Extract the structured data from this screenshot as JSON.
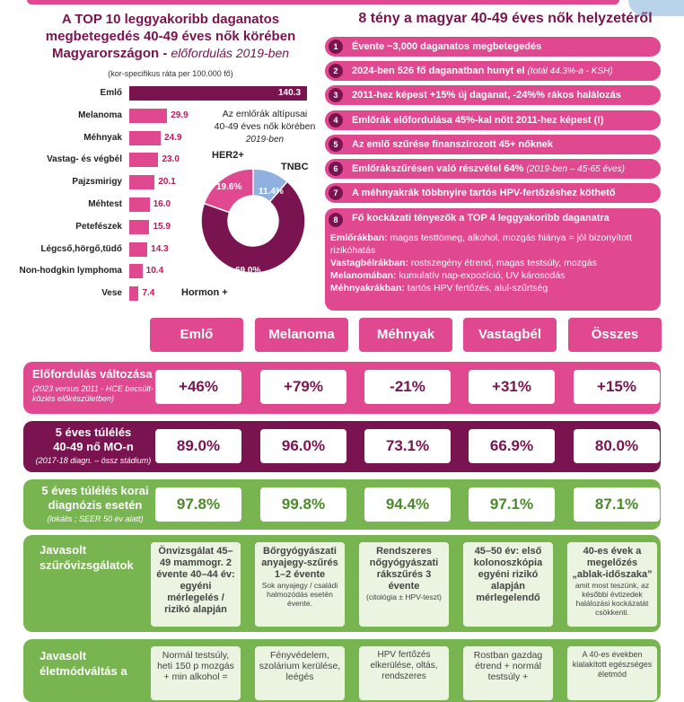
{
  "chart_data": {
    "type": "bar",
    "title": "A TOP 10 leggyakoribb daganatos megbetegedés 40-49 éves nők körében Magyarországon -",
    "title_italic": "előfordulás 2019-ben",
    "note": "(kor-specifikus ráta per 100.000 fő)",
    "categories": [
      "Emlő",
      "Melanoma",
      "Méhnyak",
      "Vastag- és végbél",
      "Pajzsmirigy",
      "Méhtest",
      "Petefészek",
      "Légcső,hörgő,tüdő",
      "Non-hodgkin lymphoma",
      "Vese"
    ],
    "values": [
      140.3,
      29.9,
      24.9,
      23.0,
      20.1,
      16.0,
      15.9,
      14.3,
      10.4,
      7.4
    ],
    "value_labels": [
      "140.3",
      "29.9",
      "24.9",
      "23.0",
      "20.1",
      "16.0",
      "15.9",
      "14.3",
      "10.4",
      "7.4"
    ],
    "colors": {
      "first": "#7a1450",
      "rest": "#e0488f"
    }
  },
  "donut": {
    "title_line1": "Az emlőrák altípusai",
    "title_line2": "40-49 éves nők körében",
    "title_line3": "2019-ben",
    "segments": [
      {
        "name": "HER2+",
        "value": 19.6,
        "label": "19.6%",
        "color": "#e0488f"
      },
      {
        "name": "TNBC",
        "value": 11.4,
        "label": "11.4%",
        "color": "#8fb0e0"
      },
      {
        "name": "Hormon +",
        "value": 69.0,
        "label": "69.0%",
        "color": "#7a1450"
      }
    ]
  },
  "facts": {
    "title": "8 tény a magyar 40-49 éves nők helyzetéről",
    "items": [
      {
        "num": "1",
        "text": "Évente ~3,000 daganatos megbetegedés",
        "small": ""
      },
      {
        "num": "2",
        "text": "2024-ben 526 fő daganatban hunyt el",
        "small": "(totál 44.3%-a - KSH)"
      },
      {
        "num": "3",
        "text": "2011-hez képest +15% új daganat, -24%% rákos halálozás",
        "small": ""
      },
      {
        "num": "4",
        "text": "Emlőrák előfordulása 45%-kal nőtt 2011-hez képest (!)",
        "small": ""
      },
      {
        "num": "5",
        "text": "Az emlő szűrése finanszírozott 45+ nőknek",
        "small": ""
      },
      {
        "num": "6",
        "text": "Emlőrákszűrésen való részvétel 64%",
        "small": "(2019-ben – 45-65 éves)"
      },
      {
        "num": "7",
        "text": "A méhnyakrák többnyire tartós HPV-fertőzéshez köthető",
        "small": ""
      }
    ],
    "item8": {
      "num": "8",
      "head": "Fő kockázati tényezők a TOP 4 leggyakoribb daganatra",
      "l1b": "Emlőrákban:",
      "l1": " magas testtömeg, alkohol, mozgás hiánya = jól bizonyított rizikóhatás",
      "l2b": "Vastagbélrákban:",
      "l2": " rostszegény étrend, magas testsúly, mozgás",
      "l3b": "Melanomában:",
      "l3": " kumulatív nap-expozíció, UV károsodás",
      "l4b": "Méhnyakrákban:",
      "l4": " tartós HPV fertőzés, alul-szűrtség"
    }
  },
  "table": {
    "columns": [
      "Emlő",
      "Melanoma",
      "Méhnyak",
      "Vastagbél",
      "Összes"
    ],
    "row1": {
      "label": "Előfordulás változása",
      "sub": "(2023 versus 2011 - HCE becsült-közlés előkészületben)",
      "values": [
        "+46%",
        "+79%",
        "-21%",
        "+31%",
        "+15%"
      ]
    },
    "row2": {
      "label1": "5 éves túlélés",
      "label2": "40-49 nő MO-n",
      "sub": "(2017-18 diagn. – össz stádium)",
      "values": [
        "89.0%",
        "96.0%",
        "73.1%",
        "66.9%",
        "80.0%"
      ]
    },
    "row3": {
      "label1": "5 éves túlélés korai",
      "label2": "diagnózis esetén",
      "sub": "(lokális ; SEER 50 év alatt)",
      "values": [
        "97.8%",
        "99.8%",
        "94.4%",
        "97.1%",
        "87.1%"
      ]
    },
    "row4": {
      "label1": "Javasolt",
      "label2": "szűrővizsgálatok",
      "cells": [
        {
          "main": "Önvizsgálat 45–49 mammogr. 2 évente 40–44 év: egyéni mérlegelés / rizikó alapján",
          "small": ""
        },
        {
          "main": "Bőrgyógyászati anyajegy-szűrés 1–2 évente",
          "small": "Sok anyajegy / családi halmozódás esetén évente."
        },
        {
          "main": "Rendszeres nőgyógyászati rákszűrés 3 évente",
          "small": "(citológia ± HPV-teszt)"
        },
        {
          "main": "45–50 év: első kolonoszkópia egyéni rizikó alapján mérlegelendő",
          "small": ""
        },
        {
          "main": "40-es évek a megelőzés „ablak-időszaka”",
          "small": "amit most teszünk, az későbbi évtizedek halálozási kockázatát csökkenti."
        }
      ]
    },
    "row5": {
      "label1": "Javasolt",
      "label2": "életmódváltás a",
      "cells": [
        "Normál testsúly, heti 150 p mozgás + min alkohol =",
        "Fényvédelem, szolárium kerülése, leégés",
        "HPV fertőzés elkerülése, oltás, rendszeres",
        "Rostban gazdag étrend + normál testsúly +",
        "A 40-es években kialakított egészséges életmód"
      ]
    }
  },
  "colors": {
    "pink": "#e0488f",
    "plum": "#7a1450",
    "green": "#78b450",
    "light_green": "#eaf4e0"
  }
}
